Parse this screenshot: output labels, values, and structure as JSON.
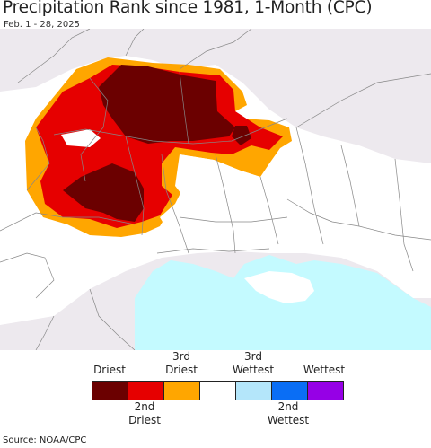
{
  "header": {
    "title": "Precipitation Rank since 1981, 1-Month (CPC)",
    "subtitle": "Feb. 1 - 28, 2025"
  },
  "legend": {
    "top_labels": [
      "Driest",
      "3rd\nDriest",
      "3rd\nWettest",
      "Wettest"
    ],
    "bottom_labels": [
      "2nd\nDriest",
      "2nd\nWettest"
    ],
    "colors": [
      "#6b0000",
      "#e60000",
      "#ffa600",
      "#ffffff",
      "#b4e6fa",
      "#0a6ef5",
      "#9600e6"
    ]
  },
  "map": {
    "land_color": "#ffffff",
    "outside_region_color": "#ede9ee",
    "sea_color": "#c4faff",
    "border_color": "#888888"
  },
  "footer": {
    "source": "Source: NOAA/CPC"
  }
}
